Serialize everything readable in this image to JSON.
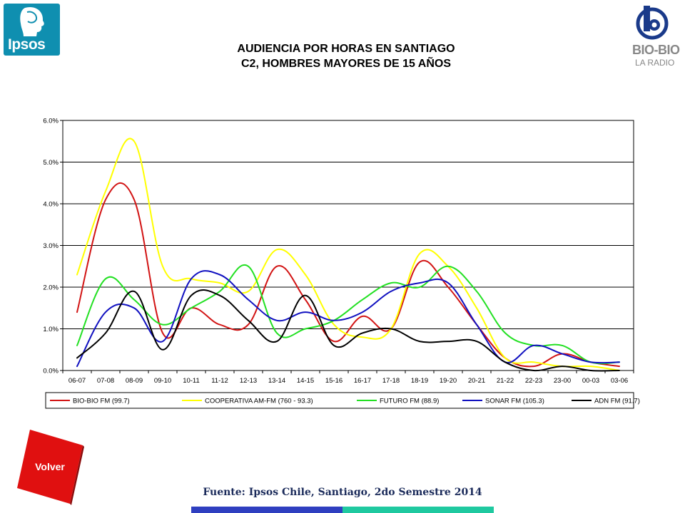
{
  "logos": {
    "ipsos_text": "Ipsos",
    "biobio_text": "BIO-BIO",
    "biobio_sub": "LA RADIO"
  },
  "title": {
    "line1": "AUDIENCIA POR HORAS EN SANTIAGO",
    "line2": "C2, HOMBRES MAYORES DE 15 AÑOS"
  },
  "chart_data": {
    "type": "line",
    "title": "",
    "xlabel": "",
    "ylabel": "",
    "ylim": [
      0,
      6
    ],
    "y_unit": "%",
    "y_ticks": [
      "0.0%",
      "1.0%",
      "2.0%",
      "3.0%",
      "4.0%",
      "5.0%",
      "6.0%"
    ],
    "grid": true,
    "legend_position": "bottom",
    "categories": [
      "06-07",
      "07-08",
      "08-09",
      "09-10",
      "10-11",
      "11-12",
      "12-13",
      "13-14",
      "14-15",
      "15-16",
      "16-17",
      "17-18",
      "18-19",
      "19-20",
      "20-21",
      "21-22",
      "22-23",
      "23-00",
      "00-03",
      "03-06"
    ],
    "series": [
      {
        "name": "BIO-BIO FM (99.7)",
        "color": "#d21414",
        "values": [
          1.4,
          4.1,
          4.1,
          0.9,
          1.5,
          1.1,
          1.1,
          2.5,
          1.7,
          0.7,
          1.3,
          1.0,
          2.6,
          2.0,
          1.1,
          0.3,
          0.1,
          0.4,
          0.2,
          0.1
        ]
      },
      {
        "name": "COOPERATIVA AM-FM (760 - 93.3)",
        "color": "#ffff00",
        "values": [
          2.3,
          4.3,
          5.5,
          2.5,
          2.2,
          2.1,
          1.9,
          2.9,
          2.3,
          1.1,
          0.8,
          1.0,
          2.8,
          2.5,
          1.5,
          0.3,
          0.2,
          0.1,
          0.1,
          0.0
        ]
      },
      {
        "name": "FUTURO FM (88.9)",
        "color": "#22e022",
        "values": [
          0.6,
          2.2,
          1.7,
          1.1,
          1.5,
          1.9,
          2.5,
          0.9,
          1.0,
          1.2,
          1.7,
          2.1,
          2.0,
          2.5,
          1.9,
          0.9,
          0.6,
          0.6,
          0.2,
          0.2
        ]
      },
      {
        "name": "SONAR FM (105.3)",
        "color": "#1010c0",
        "values": [
          0.1,
          1.4,
          1.5,
          0.7,
          2.2,
          2.3,
          1.7,
          1.2,
          1.4,
          1.2,
          1.4,
          1.9,
          2.1,
          2.1,
          1.1,
          0.2,
          0.6,
          0.4,
          0.2,
          0.2
        ]
      },
      {
        "name": "ADN FM (91.7)",
        "color": "#000000",
        "values": [
          0.3,
          0.9,
          1.9,
          0.5,
          1.8,
          1.8,
          1.2,
          0.7,
          1.8,
          0.6,
          0.9,
          1.0,
          0.7,
          0.7,
          0.7,
          0.2,
          0.0,
          0.1,
          0.0,
          0.0
        ]
      }
    ]
  },
  "volver_label": "Volver",
  "source": "Fuente: Ipsos Chile, Santiago, 2do Semestre 2014",
  "colors": {
    "ipsos_brand": "#0f8fb0",
    "volver_red": "#e01010",
    "footer_blue": "#2f3fc0",
    "footer_teal": "#1fc9a0"
  }
}
